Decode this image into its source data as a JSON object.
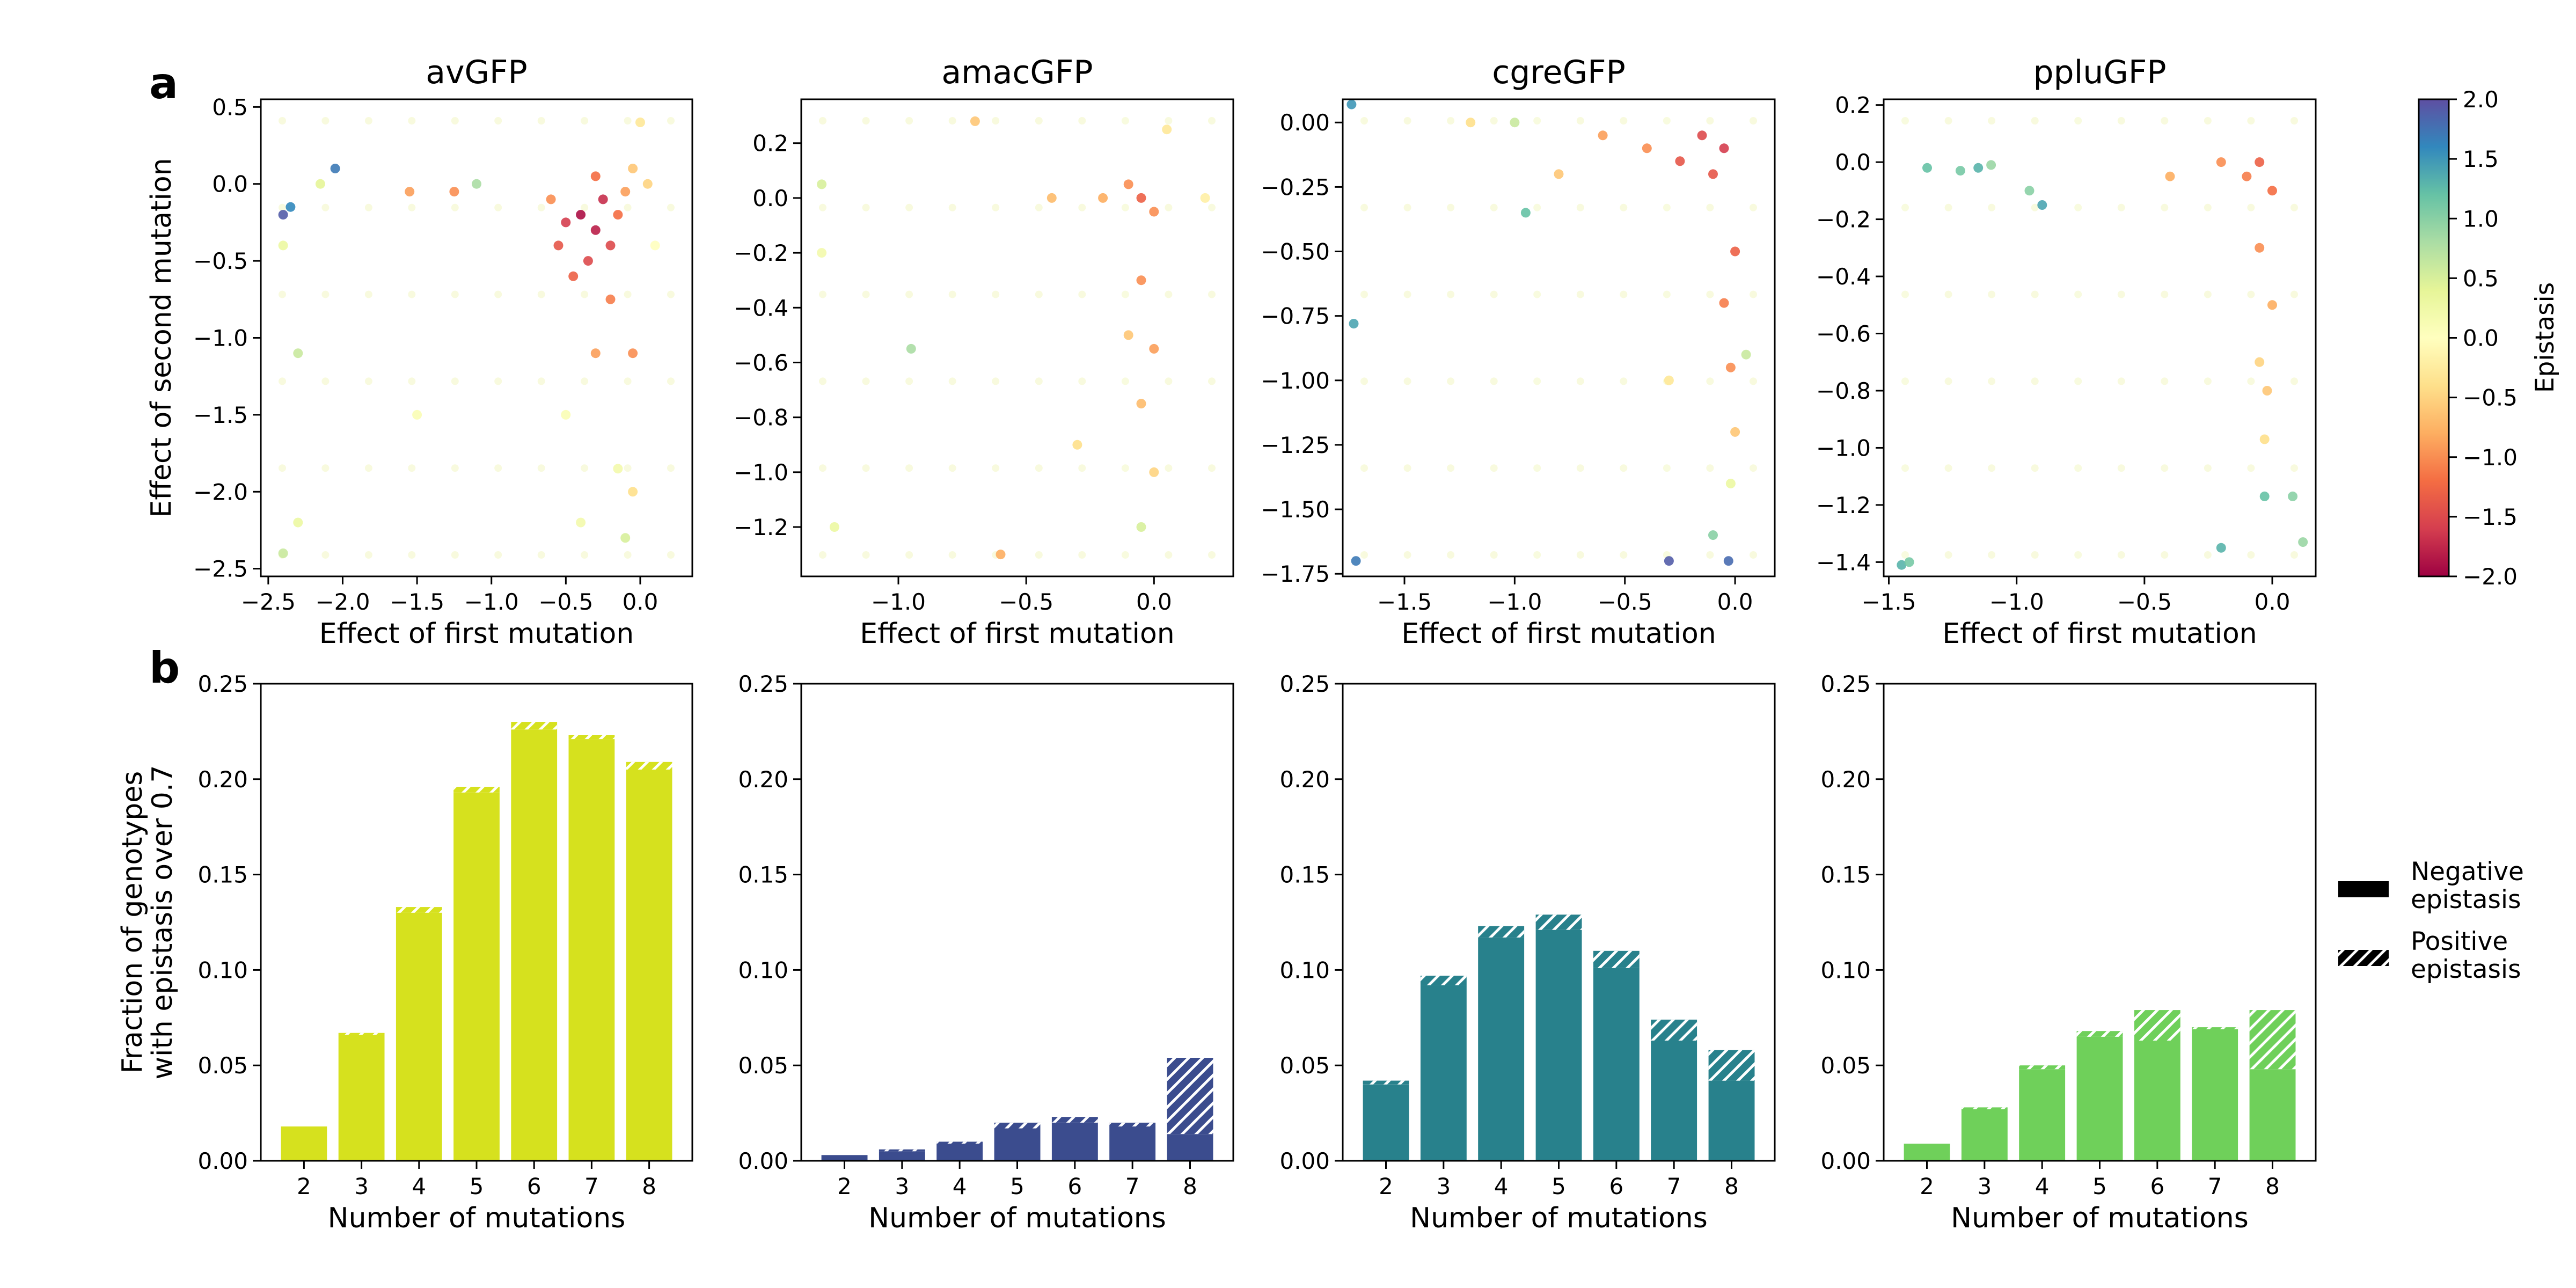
{
  "figure": {
    "panel_labels": [
      "a",
      "b"
    ],
    "colorbar": {
      "label": "Epistasis",
      "ticks": [
        "2.0",
        "1.5",
        "1.0",
        "0.5",
        "0.0",
        "−0.5",
        "−1.0",
        "−1.5",
        "−2.0"
      ],
      "range": [
        -2.0,
        2.0
      ],
      "colormap": "Spectral"
    },
    "legend": {
      "placement": "right of panel b",
      "items": [
        {
          "label_line1": "Negative",
          "label_line2": "epistasis",
          "pattern": "solid"
        },
        {
          "label_line1": "Positive",
          "label_line2": "epistasis",
          "pattern": "hatched"
        }
      ]
    }
  },
  "chart_data": [
    {
      "type": "scatter",
      "title": "avGFP",
      "xlabel": "Effect of first mutation",
      "ylabel": "Effect of second mutation",
      "xlim": [
        -2.55,
        0.35
      ],
      "ylim": [
        -2.55,
        0.55
      ],
      "xticks": [
        -2.5,
        -2.0,
        -1.5,
        -1.0,
        -0.5,
        0.0
      ],
      "xticklabels": [
        "−2.5",
        "−2.0",
        "−1.5",
        "−1.0",
        "−0.5",
        "0.0"
      ],
      "yticks": [
        0.5,
        0.0,
        -0.5,
        -1.0,
        -1.5,
        -2.0,
        -2.5
      ],
      "yticklabels": [
        "0.5",
        "0.0",
        "−0.5",
        "−1.0",
        "−1.5",
        "−2.0",
        "−2.5"
      ],
      "color_encodes": "Epistasis",
      "points": [
        [
          -0.4,
          -0.2,
          -1.9
        ],
        [
          -0.3,
          -0.3,
          -1.8
        ],
        [
          -0.25,
          -0.1,
          -1.7
        ],
        [
          -0.5,
          -0.25,
          -1.6
        ],
        [
          -0.2,
          -0.4,
          -1.5
        ],
        [
          -0.35,
          -0.5,
          -1.5
        ],
        [
          -0.45,
          -0.6,
          -1.3
        ],
        [
          -0.3,
          0.05,
          -1.2
        ],
        [
          -0.15,
          -0.2,
          -1.2
        ],
        [
          -0.1,
          -0.05,
          -0.9
        ],
        [
          -0.6,
          -0.1,
          -1.0
        ],
        [
          -0.55,
          -0.4,
          -1.4
        ],
        [
          -0.2,
          -0.75,
          -1.1
        ],
        [
          -0.05,
          0.1,
          -0.6
        ],
        [
          0.05,
          0.0,
          -0.5
        ],
        [
          0.0,
          0.4,
          -0.3
        ],
        [
          -0.05,
          -1.1,
          -1.0
        ],
        [
          -0.3,
          -1.1,
          -0.9
        ],
        [
          -1.1,
          0.0,
          0.8
        ],
        [
          -2.05,
          0.1,
          1.7
        ],
        [
          -2.4,
          -0.2,
          1.9
        ],
        [
          -2.35,
          -0.15,
          1.6
        ],
        [
          -1.55,
          -0.05,
          -0.9
        ],
        [
          -1.25,
          -0.05,
          -1.0
        ],
        [
          -2.4,
          -0.4,
          0.3
        ],
        [
          -2.3,
          -1.1,
          0.6
        ],
        [
          -0.1,
          -2.3,
          0.5
        ],
        [
          -0.4,
          -2.2,
          0.2
        ],
        [
          -0.05,
          -2.0,
          -0.4
        ],
        [
          -2.4,
          -2.4,
          0.6
        ],
        [
          -2.3,
          -2.2,
          0.3
        ],
        [
          -0.15,
          -1.85,
          0.2
        ],
        [
          -0.5,
          -1.5,
          0.1
        ],
        [
          -1.5,
          -1.5,
          0.1
        ],
        [
          0.1,
          -0.4,
          0.0
        ],
        [
          -2.15,
          0.0,
          0.4
        ]
      ]
    },
    {
      "type": "scatter",
      "title": "amacGFP",
      "xlabel": "Effect of first mutation",
      "ylabel": "",
      "xlim": [
        -1.38,
        0.31
      ],
      "ylim": [
        -1.38,
        0.36
      ],
      "xticks": [
        -1.0,
        -0.5,
        0.0
      ],
      "xticklabels": [
        "−1.0",
        "−0.5",
        "0.0"
      ],
      "yticks": [
        0.2,
        0.0,
        -0.2,
        -0.4,
        -0.6,
        -0.8,
        -1.0,
        -1.2
      ],
      "yticklabels": [
        "0.2",
        "0.0",
        "−0.2",
        "−0.4",
        "−0.6",
        "−0.8",
        "−1.0",
        "−1.2"
      ],
      "color_encodes": "Epistasis",
      "points": [
        [
          -0.05,
          0.0,
          -1.3
        ],
        [
          0.0,
          -0.05,
          -1.0
        ],
        [
          -0.05,
          -0.3,
          -1.0
        ],
        [
          0.0,
          -0.55,
          -0.9
        ],
        [
          -0.1,
          0.05,
          -1.0
        ],
        [
          -0.2,
          0.0,
          -0.8
        ],
        [
          -0.4,
          0.0,
          -0.7
        ],
        [
          -0.05,
          -0.75,
          -0.7
        ],
        [
          0.0,
          -1.0,
          -0.5
        ],
        [
          -0.05,
          -1.2,
          0.5
        ],
        [
          -1.25,
          -1.2,
          0.3
        ],
        [
          -1.3,
          0.05,
          0.5
        ],
        [
          -0.95,
          -0.55,
          0.8
        ],
        [
          -0.7,
          0.28,
          -0.6
        ],
        [
          -0.1,
          -0.5,
          -0.6
        ],
        [
          0.05,
          0.25,
          -0.3
        ],
        [
          -0.6,
          -1.3,
          -0.8
        ],
        [
          0.2,
          0.0,
          -0.2
        ],
        [
          -1.3,
          -0.2,
          0.2
        ],
        [
          -0.3,
          -0.9,
          -0.4
        ]
      ]
    },
    {
      "type": "scatter",
      "title": "cgreGFP",
      "xlabel": "Effect of first mutation",
      "ylabel": "",
      "xlim": [
        -1.78,
        0.18
      ],
      "ylim": [
        -1.76,
        0.09
      ],
      "xticks": [
        -1.5,
        -1.0,
        -0.5,
        0.0
      ],
      "xticklabels": [
        "−1.5",
        "−1.0",
        "−0.5",
        "0.0"
      ],
      "yticks": [
        0.0,
        -0.25,
        -0.5,
        -0.75,
        -1.0,
        -1.25,
        -1.5,
        -1.75
      ],
      "yticklabels": [
        "0.00",
        "−0.25",
        "−0.50",
        "−0.75",
        "−1.00",
        "−1.25",
        "−1.50",
        "−1.75"
      ],
      "color_encodes": "Epistasis",
      "points": [
        [
          -0.05,
          -0.1,
          -1.6
        ],
        [
          -0.15,
          -0.05,
          -1.5
        ],
        [
          -0.1,
          -0.2,
          -1.4
        ],
        [
          -0.25,
          -0.15,
          -1.4
        ],
        [
          0.0,
          -0.5,
          -1.3
        ],
        [
          -0.05,
          -0.7,
          -1.1
        ],
        [
          -0.4,
          -0.1,
          -1.0
        ],
        [
          -0.6,
          -0.05,
          -0.9
        ],
        [
          -0.02,
          -0.95,
          -1.0
        ],
        [
          0.0,
          -1.2,
          -0.6
        ],
        [
          -1.74,
          0.07,
          1.5
        ],
        [
          -1.73,
          -0.78,
          1.4
        ],
        [
          -0.95,
          -0.35,
          1.2
        ],
        [
          -1.72,
          -1.7,
          1.7
        ],
        [
          -0.03,
          -1.7,
          1.8
        ],
        [
          -0.1,
          -1.6,
          1.0
        ],
        [
          -0.3,
          -1.7,
          1.9
        ],
        [
          -1.0,
          0.0,
          0.6
        ],
        [
          -0.8,
          -0.2,
          -0.6
        ],
        [
          -1.2,
          0.0,
          -0.4
        ],
        [
          -0.02,
          -1.4,
          0.3
        ],
        [
          0.05,
          -0.9,
          0.6
        ],
        [
          -0.3,
          -1.0,
          -0.3
        ]
      ]
    },
    {
      "type": "scatter",
      "title": "ppluGFP",
      "xlabel": "Effect of first mutation",
      "ylabel": "",
      "xlim": [
        -1.52,
        0.17
      ],
      "ylim": [
        -1.45,
        0.22
      ],
      "xticks": [
        -1.5,
        -1.0,
        -0.5,
        0.0
      ],
      "xticklabels": [
        "−1.5",
        "−1.0",
        "−0.5",
        "0.0"
      ],
      "yticks": [
        0.2,
        0.0,
        -0.2,
        -0.4,
        -0.6,
        -0.8,
        -1.0,
        -1.2,
        -1.4
      ],
      "yticklabels": [
        "0.2",
        "0.0",
        "−0.2",
        "−0.4",
        "−0.6",
        "−0.8",
        "−1.0",
        "−1.2",
        "−1.4"
      ],
      "color_encodes": "Epistasis",
      "points": [
        [
          -0.05,
          0.0,
          -1.3
        ],
        [
          0.0,
          -0.1,
          -1.2
        ],
        [
          -0.1,
          -0.05,
          -1.1
        ],
        [
          -0.2,
          0.0,
          -1.0
        ],
        [
          -0.05,
          -0.3,
          -1.0
        ],
        [
          0.0,
          -0.5,
          -0.8
        ],
        [
          -0.02,
          -0.8,
          -0.6
        ],
        [
          -0.4,
          -0.05,
          -0.8
        ],
        [
          -1.35,
          -0.02,
          1.2
        ],
        [
          -1.22,
          -0.03,
          1.1
        ],
        [
          -1.15,
          -0.02,
          1.3
        ],
        [
          -1.1,
          -0.01,
          0.9
        ],
        [
          -0.95,
          -0.1,
          1.0
        ],
        [
          -0.9,
          -0.15,
          1.4
        ],
        [
          -1.45,
          -1.41,
          1.3
        ],
        [
          -1.42,
          -1.4,
          1.1
        ],
        [
          -0.2,
          -1.35,
          1.3
        ],
        [
          -0.03,
          -1.17,
          1.2
        ],
        [
          0.08,
          -1.17,
          1.0
        ],
        [
          0.12,
          -1.33,
          0.9
        ],
        [
          -0.03,
          -0.97,
          -0.4
        ],
        [
          -0.05,
          -0.7,
          -0.5
        ]
      ]
    },
    {
      "type": "bar",
      "title": "",
      "xlabel": "Number of mutations",
      "ylabel_line1": "Fraction of genotypes",
      "ylabel_line2": "with epistasis over 0.7",
      "color": "#d6e11e",
      "categories": [
        "2",
        "3",
        "4",
        "5",
        "6",
        "7",
        "8"
      ],
      "ylim": [
        0,
        0.25
      ],
      "yticks": [
        0.0,
        0.05,
        0.1,
        0.15,
        0.2,
        0.25
      ],
      "yticklabels": [
        "0.00",
        "0.05",
        "0.10",
        "0.15",
        "0.20",
        "0.25"
      ],
      "series": [
        {
          "name": "Negative epistasis",
          "values": [
            0.018,
            0.066,
            0.13,
            0.193,
            0.226,
            0.221,
            0.205
          ]
        },
        {
          "name": "Positive epistasis",
          "values": [
            0.0,
            0.001,
            0.003,
            0.003,
            0.004,
            0.002,
            0.004
          ]
        }
      ]
    },
    {
      "type": "bar",
      "title": "",
      "xlabel": "Number of mutations",
      "ylabel_line1": "",
      "ylabel_line2": "",
      "color": "#3b4c8e",
      "categories": [
        "2",
        "3",
        "4",
        "5",
        "6",
        "7",
        "8"
      ],
      "ylim": [
        0,
        0.25
      ],
      "yticks": [
        0.0,
        0.05,
        0.1,
        0.15,
        0.2,
        0.25
      ],
      "yticklabels": [
        "0.00",
        "0.05",
        "0.10",
        "0.15",
        "0.20",
        "0.25"
      ],
      "series": [
        {
          "name": "Negative epistasis",
          "values": [
            0.003,
            0.005,
            0.009,
            0.017,
            0.02,
            0.018,
            0.014
          ]
        },
        {
          "name": "Positive epistasis",
          "values": [
            0.0,
            0.001,
            0.001,
            0.003,
            0.003,
            0.002,
            0.04
          ]
        }
      ]
    },
    {
      "type": "bar",
      "title": "",
      "xlabel": "Number of mutations",
      "ylabel_line1": "",
      "ylabel_line2": "",
      "color": "#28818c",
      "categories": [
        "2",
        "3",
        "4",
        "5",
        "6",
        "7",
        "8"
      ],
      "ylim": [
        0,
        0.25
      ],
      "yticks": [
        0.0,
        0.05,
        0.1,
        0.15,
        0.2,
        0.25
      ],
      "yticklabels": [
        "0.00",
        "0.05",
        "0.10",
        "0.15",
        "0.20",
        "0.25"
      ],
      "series": [
        {
          "name": "Negative epistasis",
          "values": [
            0.04,
            0.092,
            0.117,
            0.121,
            0.101,
            0.063,
            0.042
          ]
        },
        {
          "name": "Positive epistasis",
          "values": [
            0.002,
            0.005,
            0.006,
            0.008,
            0.009,
            0.011,
            0.016
          ]
        }
      ]
    },
    {
      "type": "bar",
      "title": "",
      "xlabel": "Number of mutations",
      "ylabel_line1": "",
      "ylabel_line2": "",
      "color": "#6fd05a",
      "categories": [
        "2",
        "3",
        "4",
        "5",
        "6",
        "7",
        "8"
      ],
      "ylim": [
        0,
        0.25
      ],
      "yticks": [
        0.0,
        0.05,
        0.1,
        0.15,
        0.2,
        0.25
      ],
      "yticklabels": [
        "0.00",
        "0.05",
        "0.10",
        "0.15",
        "0.20",
        "0.25"
      ],
      "series": [
        {
          "name": "Negative epistasis",
          "values": [
            0.009,
            0.027,
            0.048,
            0.065,
            0.063,
            0.069,
            0.048
          ]
        },
        {
          "name": "Positive epistasis",
          "values": [
            0.0,
            0.001,
            0.002,
            0.003,
            0.016,
            0.001,
            0.031
          ]
        }
      ]
    }
  ]
}
